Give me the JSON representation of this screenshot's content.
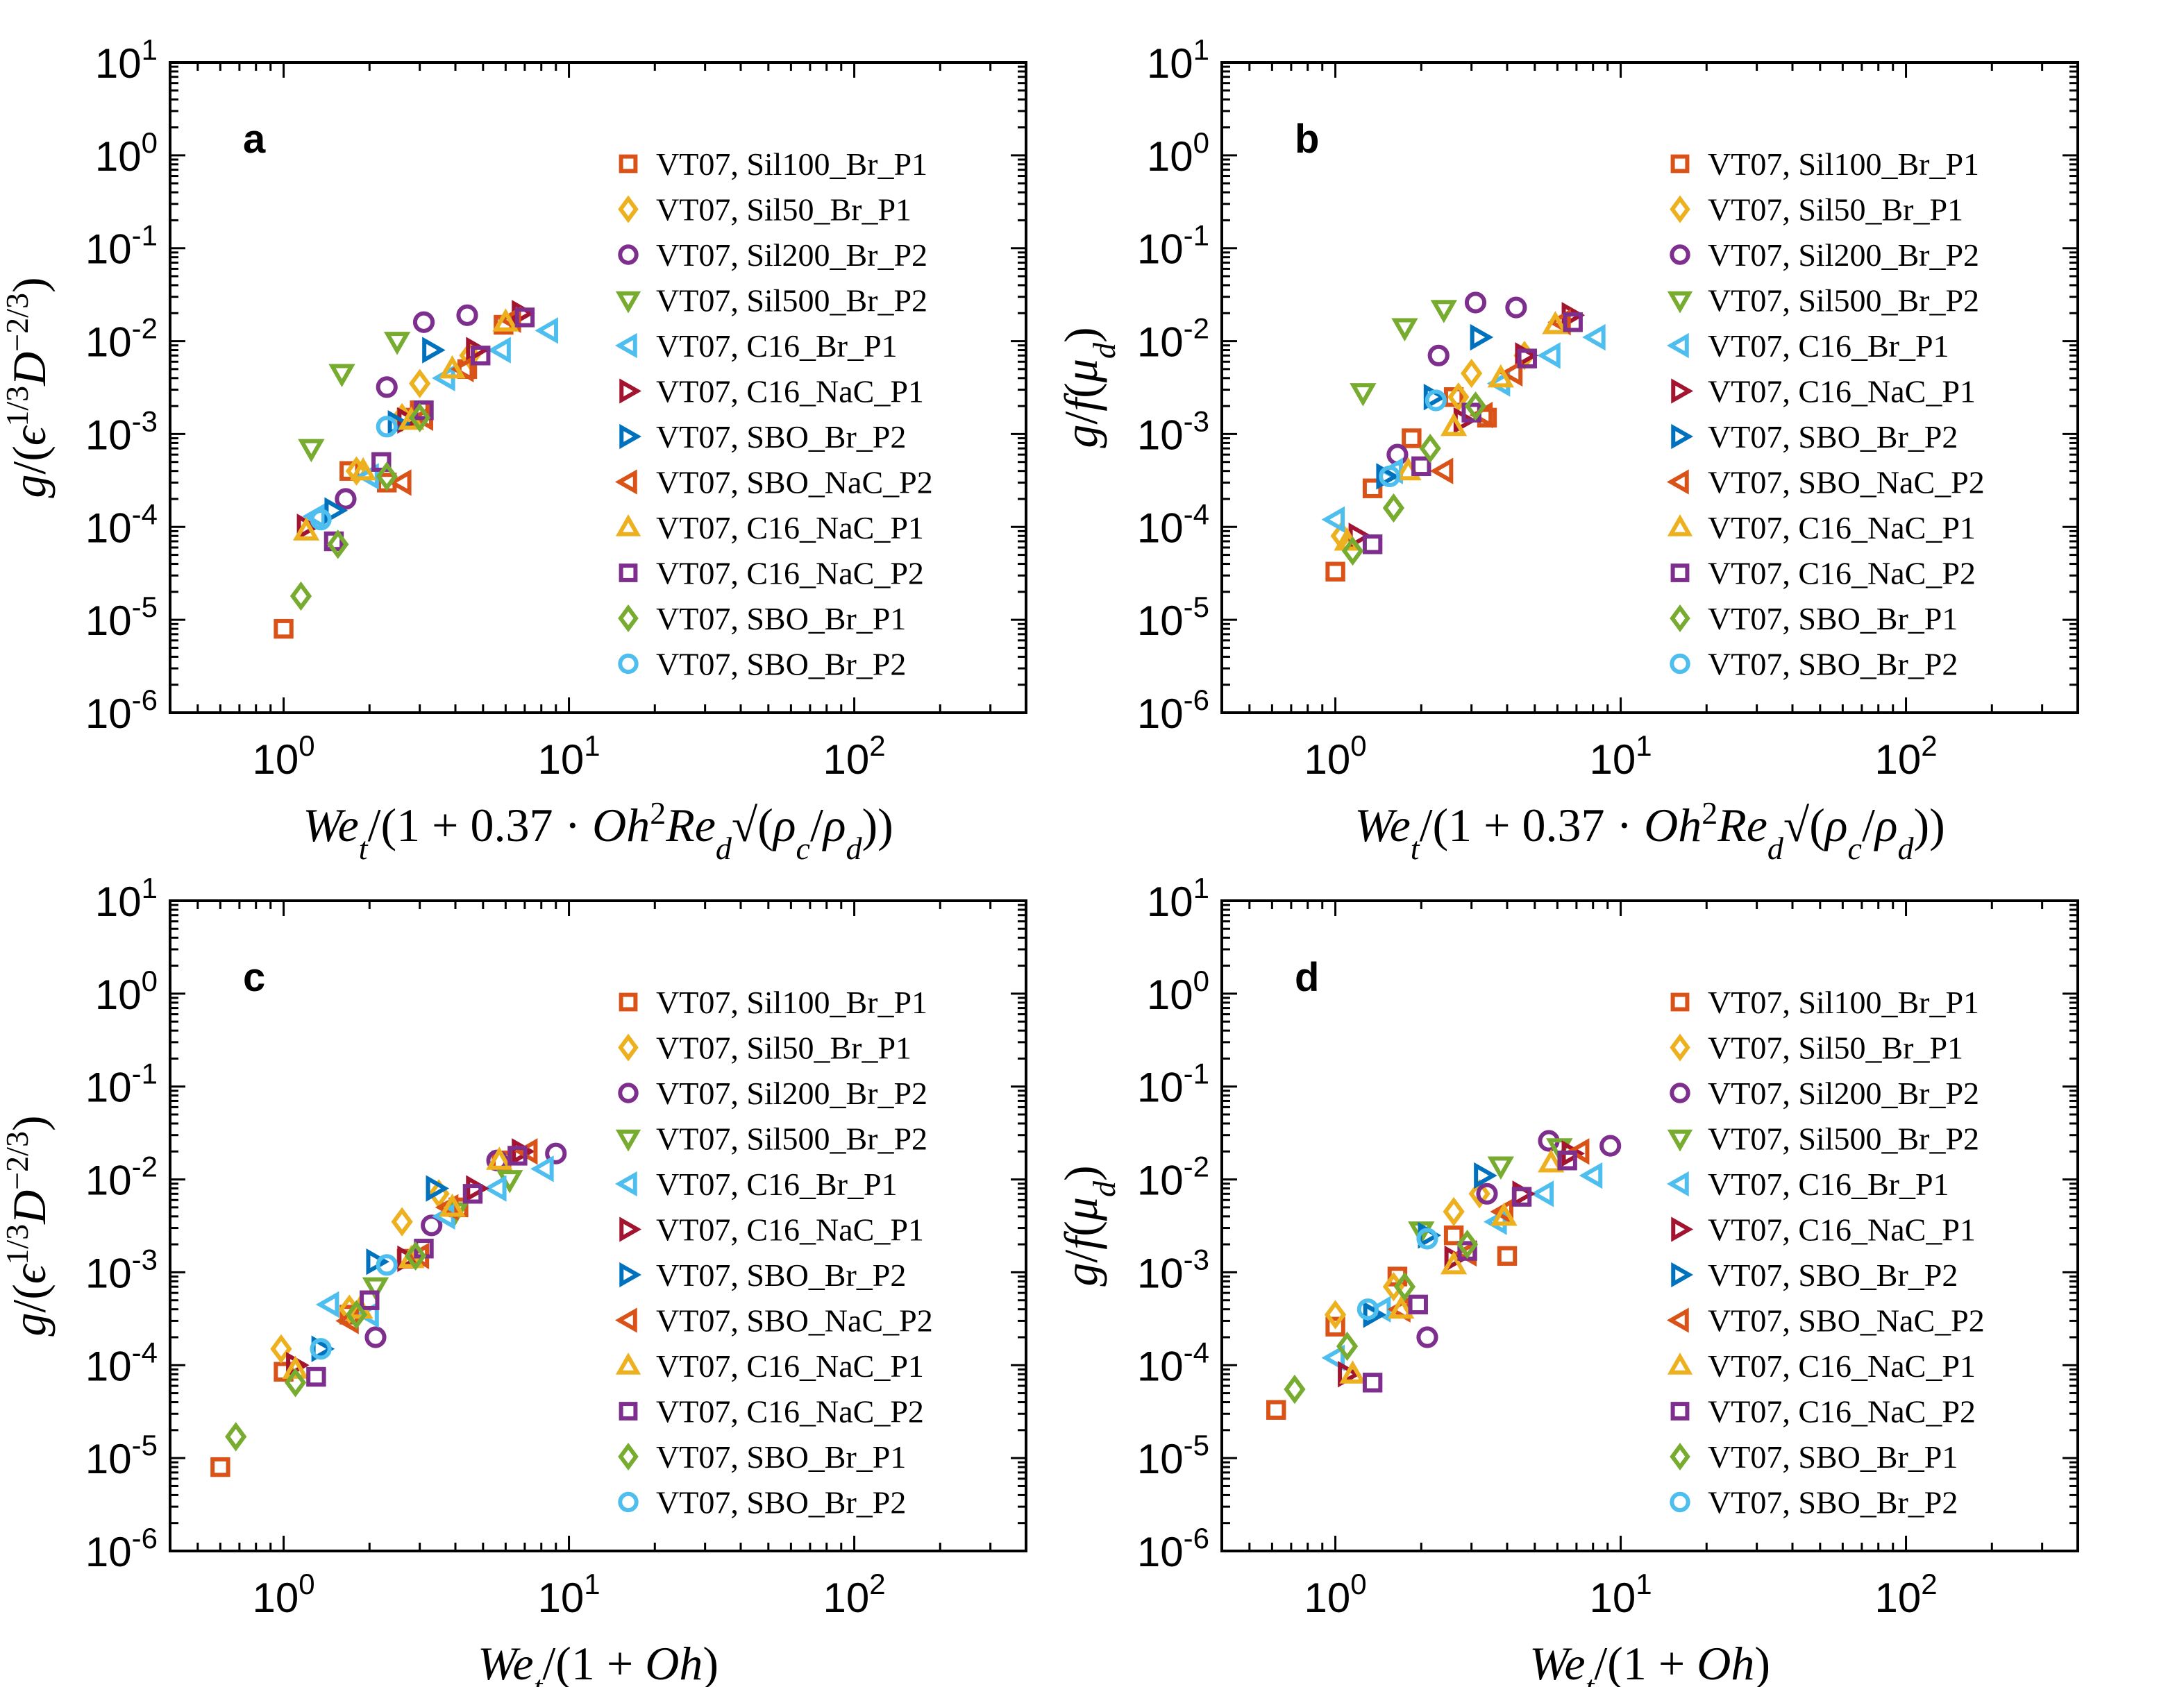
{
  "chart_data": [
    {
      "panel": "a",
      "type": "scatter",
      "xscale": "log",
      "yscale": "log",
      "xlim": [
        0.4,
        400
      ],
      "ylim": [
        1e-06,
        10
      ],
      "grid": false,
      "legend_placement": "right",
      "xlabel": "We_t/(1+0.37·Oh²Re_d√(ρ_c/ρ_d))",
      "ylabel": "g/(ε^{1/3}D^{−2/3})",
      "series": [
        {
          "name": "VT07, Sil100_Br_P1",
          "x": [
            1.0,
            1.7,
            2.3,
            2.7,
            3.0,
            4.4,
            5.9
          ],
          "y": [
            8e-06,
            0.0004,
            0.0003,
            0.0015,
            0.0018,
            0.005,
            0.015
          ]
        },
        {
          "name": "VT07, Sil50_Br_P1",
          "x": [
            1.8,
            2.6,
            3.0,
            4.5
          ],
          "y": [
            0.0004,
            0.0015,
            0.0035,
            0.007
          ]
        },
        {
          "name": "VT07, Sil200_Br_P2",
          "x": [
            1.65,
            2.3,
            3.1,
            4.4
          ],
          "y": [
            0.0002,
            0.0032,
            0.016,
            0.019
          ]
        },
        {
          "name": "VT07, Sil500_Br_P2",
          "x": [
            1.25,
            1.6,
            2.5
          ],
          "y": [
            0.0007,
            0.0045,
            0.01
          ]
        },
        {
          "name": "VT07, C16_Br_P1",
          "x": [
            1.3,
            2.0,
            3.7,
            5.8,
            8.5
          ],
          "y": [
            0.00013,
            0.00035,
            0.004,
            0.008,
            0.013
          ]
        },
        {
          "name": "VT07, C16_NaC_P1",
          "x": [
            1.2,
            2.7,
            4.7,
            6.8
          ],
          "y": [
            0.0001,
            0.0014,
            0.008,
            0.02
          ]
        },
        {
          "name": "VT07, SBO_Br_P2",
          "x": [
            1.5,
            2.5,
            3.3
          ],
          "y": [
            0.00015,
            0.0013,
            0.008
          ]
        },
        {
          "name": "VT07, SBO_NaC_P2",
          "x": [
            2.6,
            3.1,
            4.3,
            6.3
          ],
          "y": [
            0.0003,
            0.0015,
            0.005,
            0.017
          ]
        },
        {
          "name": "VT07, C16_NaC_P1",
          "x": [
            1.2,
            1.9,
            2.8,
            3.9,
            6.0
          ],
          "y": [
            9e-05,
            0.0004,
            0.0014,
            0.005,
            0.016
          ]
        },
        {
          "name": "VT07, C16_NaC_P2",
          "x": [
            1.5,
            2.2,
            3.1,
            4.9,
            7.0
          ],
          "y": [
            7e-05,
            0.0005,
            0.0018,
            0.007,
            0.018
          ]
        },
        {
          "name": "VT07, SBO_Br_P1",
          "x": [
            1.15,
            1.55,
            2.3,
            3.0
          ],
          "y": [
            1.8e-05,
            6.5e-05,
            0.00035,
            0.0015
          ]
        },
        {
          "name": "VT07, SBO_Br_P2",
          "x": [
            1.35,
            2.3
          ],
          "y": [
            0.00012,
            0.0012
          ]
        }
      ]
    },
    {
      "panel": "b",
      "type": "scatter",
      "xscale": "log",
      "yscale": "log",
      "xlim": [
        0.4,
        400
      ],
      "ylim": [
        1e-06,
        10
      ],
      "grid": false,
      "legend_placement": "right",
      "xlabel": "We_t/(1+0.37·Oh²Re_d√(ρ_c/ρ_d))",
      "ylabel": "g/f(μ_d)",
      "series": [
        {
          "name": "VT07, Sil100_Br_P1",
          "x": [
            1.0,
            1.35,
            1.85,
            2.6,
            3.4
          ],
          "y": [
            3.3e-05,
            0.00026,
            0.0009,
            0.0025,
            0.0015
          ]
        },
        {
          "name": "VT07, Sil50_Br_P1",
          "x": [
            1.05,
            2.7,
            3.0,
            4.6
          ],
          "y": [
            8e-05,
            0.0025,
            0.0045,
            0.007
          ]
        },
        {
          "name": "VT07, Sil200_Br_P2",
          "x": [
            1.65,
            2.3,
            3.1,
            4.3
          ],
          "y": [
            0.0006,
            0.007,
            0.026,
            0.023
          ]
        },
        {
          "name": "VT07, Sil500_Br_P2",
          "x": [
            1.25,
            1.75,
            2.4
          ],
          "y": [
            0.0028,
            0.014,
            0.022
          ]
        },
        {
          "name": "VT07, C16_Br_P1",
          "x": [
            1.0,
            1.6,
            3.8,
            5.7,
            8.2
          ],
          "y": [
            0.00012,
            0.0004,
            0.0035,
            0.007,
            0.011
          ]
        },
        {
          "name": "VT07, C16_NaC_P1",
          "x": [
            1.2,
            2.8,
            4.6,
            6.7
          ],
          "y": [
            8e-05,
            0.0014,
            0.007,
            0.019
          ]
        },
        {
          "name": "VT07, SBO_Br_P2",
          "x": [
            1.5,
            2.2,
            3.2
          ],
          "y": [
            0.00035,
            0.0025,
            0.011
          ]
        },
        {
          "name": "VT07, SBO_NaC_P2",
          "x": [
            2.4,
            3.3,
            4.2,
            6.2
          ],
          "y": [
            0.0004,
            0.0016,
            0.0045,
            0.016
          ]
        },
        {
          "name": "VT07, C16_NaC_P1",
          "x": [
            1.1,
            1.8,
            2.6,
            3.8,
            5.9
          ],
          "y": [
            7e-05,
            0.0004,
            0.0012,
            0.004,
            0.015
          ]
        },
        {
          "name": "VT07, C16_NaC_P2",
          "x": [
            1.35,
            2.0,
            3.0,
            4.7,
            6.8
          ],
          "y": [
            6.5e-05,
            0.00045,
            0.0017,
            0.0065,
            0.016
          ]
        },
        {
          "name": "VT07, SBO_Br_P1",
          "x": [
            1.15,
            1.6,
            2.15,
            3.1
          ],
          "y": [
            5.5e-05,
            0.00016,
            0.0007,
            0.002
          ]
        },
        {
          "name": "VT07, SBO_Br_P2",
          "x": [
            1.55,
            2.25
          ],
          "y": [
            0.00035,
            0.0023
          ]
        }
      ]
    },
    {
      "panel": "c",
      "type": "scatter",
      "xscale": "log",
      "yscale": "log",
      "xlim": [
        0.4,
        400
      ],
      "ylim": [
        1e-06,
        10
      ],
      "grid": false,
      "legend_placement": "right",
      "xlabel": "We_t/(1+Oh)",
      "ylabel": "g/(ε^{1/3}D^{−2/3})",
      "series": [
        {
          "name": "VT07, Sil100_Br_P1",
          "x": [
            0.6,
            1.0,
            1.7,
            2.7,
            4.1,
            5.8
          ],
          "y": [
            8e-06,
            8.5e-05,
            0.00035,
            0.0014,
            0.005,
            0.016
          ]
        },
        {
          "name": "VT07, Sil50_Br_P1",
          "x": [
            0.98,
            1.7,
            2.6,
            3.5
          ],
          "y": [
            0.00015,
            0.0004,
            0.0035,
            0.007
          ]
        },
        {
          "name": "VT07, Sil200_Br_P2",
          "x": [
            2.1,
            3.3,
            5.6,
            9.0
          ],
          "y": [
            0.0002,
            0.0032,
            0.016,
            0.019
          ]
        },
        {
          "name": "VT07, Sil500_Br_P2",
          "x": [
            2.1,
            4.0,
            6.2
          ],
          "y": [
            0.0007,
            0.0045,
            0.01
          ]
        },
        {
          "name": "VT07, C16_Br_P1",
          "x": [
            1.45,
            2.0,
            3.7,
            5.6,
            8.2
          ],
          "y": [
            0.00045,
            0.00035,
            0.004,
            0.008,
            0.013
          ]
        },
        {
          "name": "VT07, C16_NaC_P1",
          "x": [
            1.1,
            2.7,
            4.7,
            6.8
          ],
          "y": [
            0.0001,
            0.0014,
            0.008,
            0.02
          ]
        },
        {
          "name": "VT07, SBO_Br_P2",
          "x": [
            1.35,
            2.1,
            3.4
          ],
          "y": [
            0.00015,
            0.0013,
            0.008
          ]
        },
        {
          "name": "VT07, SBO_NaC_P2",
          "x": [
            1.7,
            3.0,
            3.8,
            7.2
          ],
          "y": [
            0.0003,
            0.0015,
            0.005,
            0.02
          ]
        },
        {
          "name": "VT07, C16_NaC_P1",
          "x": [
            1.1,
            1.85,
            2.8,
            3.9,
            5.7
          ],
          "y": [
            9e-05,
            0.0004,
            0.0014,
            0.005,
            0.016
          ]
        },
        {
          "name": "VT07, C16_NaC_P2",
          "x": [
            1.3,
            2.0,
            3.1,
            4.6,
            6.6
          ],
          "y": [
            7.5e-05,
            0.0005,
            0.0018,
            0.007,
            0.018
          ]
        },
        {
          "name": "VT07, SBO_Br_P1",
          "x": [
            0.68,
            1.1,
            1.8,
            2.9
          ],
          "y": [
            1.7e-05,
            6.5e-05,
            0.00035,
            0.0015
          ]
        },
        {
          "name": "VT07, SBO_Br_P2",
          "x": [
            1.35,
            2.3
          ],
          "y": [
            0.00015,
            0.0012
          ]
        }
      ]
    },
    {
      "panel": "d",
      "type": "scatter",
      "xscale": "log",
      "yscale": "log",
      "xlim": [
        0.4,
        400
      ],
      "ylim": [
        1e-06,
        10
      ],
      "grid": false,
      "legend_placement": "right",
      "xlabel": "We_t/(1+Oh)",
      "ylabel": "g/f(μ_d)",
      "series": [
        {
          "name": "VT07, Sil100_Br_P1",
          "x": [
            0.62,
            1.0,
            1.65,
            2.6,
            4.0
          ],
          "y": [
            3.3e-05,
            0.00026,
            0.0009,
            0.0025,
            0.0015
          ]
        },
        {
          "name": "VT07, Sil50_Br_P1",
          "x": [
            1.0,
            1.6,
            2.6,
            3.2
          ],
          "y": [
            0.00035,
            0.0007,
            0.0045,
            0.007
          ]
        },
        {
          "name": "VT07, Sil200_Br_P2",
          "x": [
            2.1,
            3.4,
            5.6,
            9.2
          ],
          "y": [
            0.0002,
            0.007,
            0.026,
            0.023
          ]
        },
        {
          "name": "VT07, Sil500_Br_P2",
          "x": [
            2.0,
            3.8,
            6.1
          ],
          "y": [
            0.0028,
            0.014,
            0.022
          ]
        },
        {
          "name": "VT07, C16_Br_P1",
          "x": [
            1.0,
            1.45,
            3.7,
            5.4,
            8.0
          ],
          "y": [
            0.00012,
            0.0004,
            0.0035,
            0.007,
            0.011
          ]
        },
        {
          "name": "VT07, C16_NaC_P1",
          "x": [
            1.1,
            2.6,
            4.5,
            6.7
          ],
          "y": [
            8e-05,
            0.0014,
            0.007,
            0.019
          ]
        },
        {
          "name": "VT07, SBO_Br_P2",
          "x": [
            1.35,
            2.1,
            3.3
          ],
          "y": [
            0.00035,
            0.0025,
            0.011
          ]
        },
        {
          "name": "VT07, SBO_NaC_P2",
          "x": [
            1.7,
            2.9,
            3.9,
            7.2
          ],
          "y": [
            0.0004,
            0.0016,
            0.0045,
            0.02
          ]
        },
        {
          "name": "VT07, C16_NaC_P1",
          "x": [
            1.15,
            1.7,
            2.6,
            3.9,
            5.7
          ],
          "y": [
            8e-05,
            0.0004,
            0.0012,
            0.004,
            0.015
          ]
        },
        {
          "name": "VT07, C16_NaC_P2",
          "x": [
            1.35,
            1.95,
            2.9,
            4.5,
            6.5
          ],
          "y": [
            6.5e-05,
            0.00045,
            0.0017,
            0.0065,
            0.016
          ]
        },
        {
          "name": "VT07, SBO_Br_P1",
          "x": [
            0.72,
            1.1,
            1.75,
            2.9
          ],
          "y": [
            5.5e-05,
            0.00016,
            0.0007,
            0.002
          ]
        },
        {
          "name": "VT07, SBO_Br_P2",
          "x": [
            1.3,
            2.1
          ],
          "y": [
            0.0004,
            0.0023
          ]
        }
      ]
    }
  ],
  "series_styles": [
    {
      "marker": "square",
      "color": "#D95319"
    },
    {
      "marker": "diamond",
      "color": "#EDB120"
    },
    {
      "marker": "circle",
      "color": "#7E2F8E"
    },
    {
      "marker": "triangle-down",
      "color": "#77AC30"
    },
    {
      "marker": "triangle-left",
      "color": "#4DBEEE"
    },
    {
      "marker": "triangle-right",
      "color": "#A2142F"
    },
    {
      "marker": "triangle-right",
      "color": "#0072BD"
    },
    {
      "marker": "triangle-left",
      "color": "#D95319"
    },
    {
      "marker": "triangle-up",
      "color": "#EDB120"
    },
    {
      "marker": "square",
      "color": "#7E2F8E"
    },
    {
      "marker": "diamond",
      "color": "#77AC30"
    },
    {
      "marker": "circle",
      "color": "#4DBEEE"
    }
  ],
  "x_ticks": [
    {
      "base": "10",
      "exp": "0",
      "value": 1
    },
    {
      "base": "10",
      "exp": "1",
      "value": 10
    },
    {
      "base": "10",
      "exp": "2",
      "value": 100
    }
  ],
  "y_ticks": [
    {
      "base": "10",
      "exp": "1",
      "value": 10
    },
    {
      "base": "10",
      "exp": "0",
      "value": 1
    },
    {
      "base": "10",
      "exp": "-1",
      "value": 0.1
    },
    {
      "base": "10",
      "exp": "-2",
      "value": 0.01
    },
    {
      "base": "10",
      "exp": "-3",
      "value": 0.001
    },
    {
      "base": "10",
      "exp": "-4",
      "value": 0.0001
    },
    {
      "base": "10",
      "exp": "-5",
      "value": 1e-05
    },
    {
      "base": "10",
      "exp": "-6",
      "value": 1e-06
    }
  ],
  "axis_label_parts": {
    "xlabel_ab": [
      {
        "t": "We",
        "it": true
      },
      {
        "t": "t",
        "sub": true,
        "it": true
      },
      {
        "t": "/(1 + 0.37 · "
      },
      {
        "t": "Oh",
        "it": true
      },
      {
        "t": "2",
        "sup": true
      },
      {
        "t": "Re",
        "it": true
      },
      {
        "t": "d",
        "sub": true,
        "it": true
      },
      {
        "t": "√(",
        "it": false
      },
      {
        "t": "ρ",
        "it": true
      },
      {
        "t": "c",
        "sub": true,
        "it": true
      },
      {
        "t": "/"
      },
      {
        "t": "ρ",
        "it": true
      },
      {
        "t": "d",
        "sub": true,
        "it": true
      },
      {
        "t": "))"
      }
    ],
    "xlabel_cd": [
      {
        "t": "We",
        "it": true
      },
      {
        "t": "t",
        "sub": true,
        "it": true
      },
      {
        "t": "/(1 + "
      },
      {
        "t": "Oh",
        "it": true
      },
      {
        "t": ")"
      }
    ],
    "ylabel_ac": [
      {
        "t": "g",
        "it": true
      },
      {
        "t": "/("
      },
      {
        "t": "ϵ",
        "it": true
      },
      {
        "t": "1/3",
        "sup": true
      },
      {
        "t": "D",
        "it": true
      },
      {
        "t": "−2/3",
        "sup": true
      },
      {
        "t": ")"
      }
    ],
    "ylabel_bd": [
      {
        "t": "g",
        "it": true
      },
      {
        "t": "/"
      },
      {
        "t": "f",
        "it": true
      },
      {
        "t": "("
      },
      {
        "t": "μ",
        "it": true
      },
      {
        "t": "d",
        "sub": true,
        "it": true
      },
      {
        "t": ")"
      }
    ]
  }
}
